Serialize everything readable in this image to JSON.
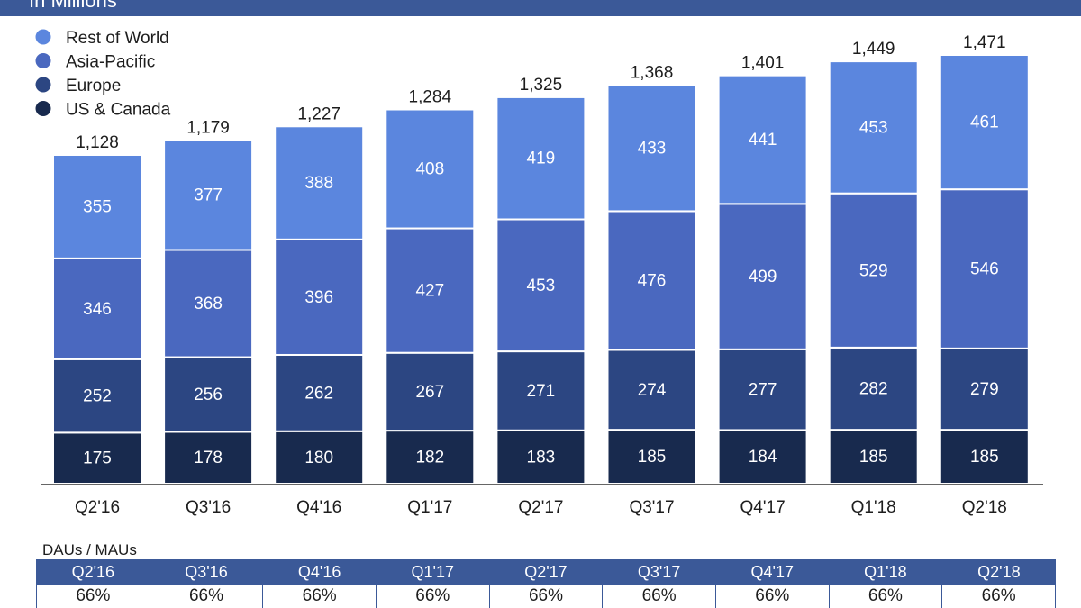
{
  "header": {
    "subtitle": "In Millions"
  },
  "colors": {
    "rest_of_world": "#5b86de",
    "asia_pacific": "#4a68bf",
    "europe": "#2c4682",
    "us_canada": "#182a4e",
    "header_band": "#3b5998"
  },
  "chart_data": {
    "type": "bar",
    "stacked": true,
    "categories": [
      "Q2'16",
      "Q3'16",
      "Q4'16",
      "Q1'17",
      "Q2'17",
      "Q3'17",
      "Q4'17",
      "Q1'18",
      "Q2'18"
    ],
    "series": [
      {
        "name": "US & Canada",
        "values": [
          175,
          178,
          180,
          182,
          183,
          185,
          184,
          185,
          185
        ]
      },
      {
        "name": "Europe",
        "values": [
          252,
          256,
          262,
          267,
          271,
          274,
          277,
          282,
          279
        ]
      },
      {
        "name": "Asia-Pacific",
        "values": [
          346,
          368,
          396,
          427,
          453,
          476,
          499,
          529,
          546
        ]
      },
      {
        "name": "Rest of World",
        "values": [
          355,
          377,
          388,
          408,
          419,
          433,
          441,
          453,
          461
        ]
      }
    ],
    "totals": [
      "1,128",
      "1,179",
      "1,227",
      "1,284",
      "1,325",
      "1,368",
      "1,401",
      "1,449",
      "1,471"
    ],
    "legend": [
      "Rest of World",
      "Asia-Pacific",
      "Europe",
      "US & Canada"
    ],
    "legend_position": "top-left",
    "ylim": [
      0,
      1471
    ],
    "grid": false
  },
  "table": {
    "title": "DAUs / MAUs",
    "headers": [
      "Q2'16",
      "Q3'16",
      "Q4'16",
      "Q1'17",
      "Q2'17",
      "Q3'17",
      "Q4'17",
      "Q1'18",
      "Q2'18"
    ],
    "values": [
      "66%",
      "66%",
      "66%",
      "66%",
      "66%",
      "66%",
      "66%",
      "66%",
      "66%"
    ]
  }
}
